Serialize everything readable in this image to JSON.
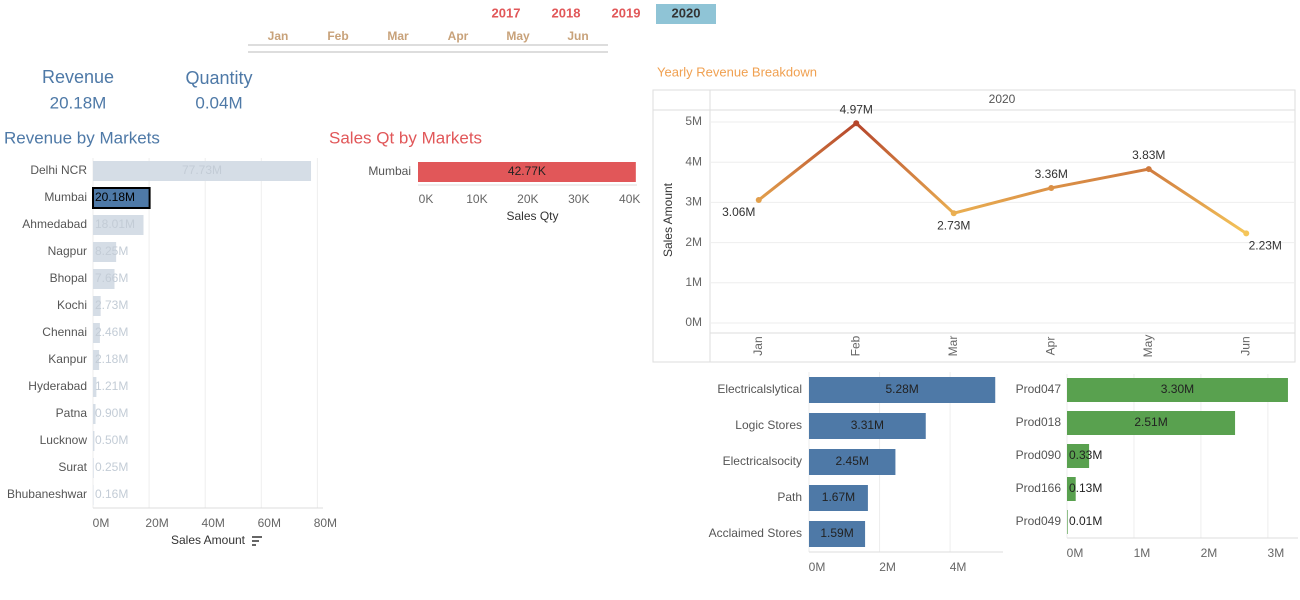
{
  "filters": {
    "years": [
      "2017",
      "2018",
      "2019",
      "2020"
    ],
    "selected_year_index": 3,
    "months": [
      "Jan",
      "Feb",
      "Mar",
      "Apr",
      "May",
      "Jun"
    ]
  },
  "kpis": [
    {
      "label": "Revenue",
      "value": "20.18M"
    },
    {
      "label": "Quantity",
      "value": "0.04M"
    }
  ],
  "chart_data": [
    {
      "type": "bar",
      "orientation": "horizontal",
      "title": "Revenue by Markets",
      "x_label": "Sales Amount",
      "categories": [
        "Delhi NCR",
        "Mumbai",
        "Ahmedabad",
        "Nagpur",
        "Bhopal",
        "Kochi",
        "Chennai",
        "Kanpur",
        "Hyderabad",
        "Patna",
        "Lucknow",
        "Surat",
        "Bhubaneshwar"
      ],
      "values": [
        77.73,
        20.18,
        18.01,
        8.25,
        7.66,
        2.73,
        2.46,
        2.18,
        1.21,
        0.9,
        0.5,
        0.25,
        0.16
      ],
      "value_labels": [
        "77.73M",
        "20.18M",
        "18.01M",
        "8.25M",
        "7.66M",
        "2.73M",
        "2.46M",
        "2.18M",
        "1.21M",
        "0.90M",
        "0.50M",
        "0.25M",
        "0.16M"
      ],
      "color": "#d5dde6",
      "highlight_index": 1,
      "highlight_color": "#4e79a7",
      "xlim": [
        0,
        82
      ],
      "xticks": [
        {
          "value": 0,
          "label": "0M"
        },
        {
          "value": 20,
          "label": "20M"
        },
        {
          "value": 40,
          "label": "40M"
        },
        {
          "value": 60,
          "label": "60M"
        },
        {
          "value": 80,
          "label": "80M"
        }
      ],
      "grid": true
    },
    {
      "type": "bar",
      "orientation": "horizontal",
      "title": "Sales Qt by Markets",
      "x_label": "Sales Qty",
      "categories": [
        "Mumbai"
      ],
      "values": [
        42.77
      ],
      "value_labels": [
        "42.77K"
      ],
      "color": "#e15759",
      "xlim": [
        0,
        43
      ],
      "xticks": [
        {
          "value": 0,
          "label": "0K"
        },
        {
          "value": 10,
          "label": "10K"
        },
        {
          "value": 20,
          "label": "20K"
        },
        {
          "value": 30,
          "label": "30K"
        },
        {
          "value": 40,
          "label": "40K"
        }
      ],
      "grid": false
    },
    {
      "type": "line",
      "title": "Yearly Revenue Breakdown",
      "header": "2020",
      "y_label": "Sales Amount",
      "categories": [
        "Jan",
        "Feb",
        "Mar",
        "Apr",
        "May",
        "Jun"
      ],
      "values": [
        3.06,
        4.97,
        2.73,
        3.36,
        3.83,
        2.23
      ],
      "value_labels": [
        "3.06M",
        "4.97M",
        "2.73M",
        "3.36M",
        "3.83M",
        "2.23M"
      ],
      "color_low": "#f5c65a",
      "color_high": "#b5452b",
      "ylim": [
        -0.25,
        5.3
      ],
      "yticks": [
        {
          "value": 0,
          "label": "0M"
        },
        {
          "value": 1,
          "label": "1M"
        },
        {
          "value": 2,
          "label": "2M"
        },
        {
          "value": 3,
          "label": "3M"
        },
        {
          "value": 4,
          "label": "4M"
        },
        {
          "value": 5,
          "label": "5M"
        }
      ],
      "grid": true
    },
    {
      "type": "bar",
      "orientation": "horizontal",
      "categories": [
        "Electricalslytical",
        "Logic Stores",
        "Electricalsocity",
        "Path",
        "Acclaimed Stores"
      ],
      "values": [
        5.28,
        3.31,
        2.45,
        1.67,
        1.59
      ],
      "value_labels": [
        "5.28M",
        "3.31M",
        "2.45M",
        "1.67M",
        "1.59M"
      ],
      "color": "#4e79a7",
      "xlim": [
        0,
        5.5
      ],
      "xticks": [
        {
          "value": 0,
          "label": "0M"
        },
        {
          "value": 2,
          "label": "2M"
        },
        {
          "value": 4,
          "label": "4M"
        }
      ],
      "grid": true
    },
    {
      "type": "bar",
      "orientation": "horizontal",
      "categories": [
        "Prod047",
        "Prod018",
        "Prod090",
        "Prod166",
        "Prod049"
      ],
      "values": [
        3.3,
        2.51,
        0.33,
        0.13,
        0.01
      ],
      "value_labels": [
        "3.30M",
        "2.51M",
        "0.33M",
        "0.13M",
        "0.01M"
      ],
      "color": "#59a14f",
      "xlim": [
        0,
        3.45
      ],
      "xticks": [
        {
          "value": 0,
          "label": "0M"
        },
        {
          "value": 1,
          "label": "1M"
        },
        {
          "value": 2,
          "label": "2M"
        },
        {
          "value": 3,
          "label": "3M"
        }
      ],
      "grid": true
    }
  ]
}
